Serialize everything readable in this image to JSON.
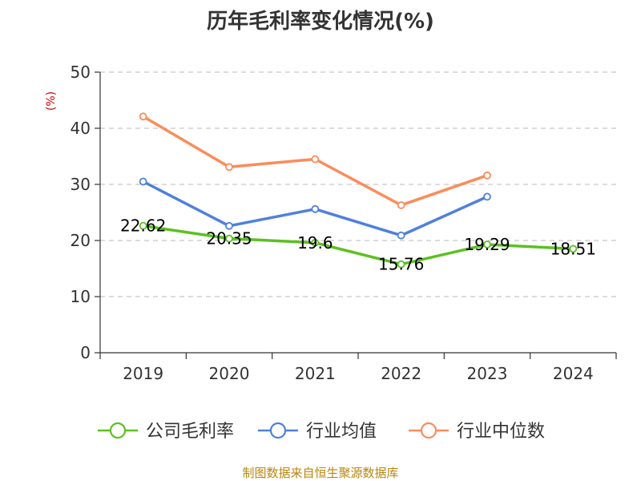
{
  "chart_data": {
    "type": "line",
    "title": "历年毛利率变化情况(%)",
    "ylabel": "(%)",
    "xlabel": "",
    "categories": [
      "2019",
      "2020",
      "2021",
      "2022",
      "2023",
      "2024"
    ],
    "yticks": [
      "0",
      "10",
      "20",
      "30",
      "40",
      "50"
    ],
    "ylim": [
      0,
      50
    ],
    "grid": true,
    "legend_position": "bottom",
    "series": [
      {
        "name": "公司毛利率",
        "color": "#5cc020",
        "values": [
          22.62,
          20.35,
          19.6,
          15.76,
          19.29,
          18.51
        ],
        "labels": [
          "22.62",
          "20.35",
          "19.6",
          "15.76",
          "19.29",
          "18.51"
        ]
      },
      {
        "name": "行业均值",
        "color": "#4f80dc",
        "values": [
          30.5,
          22.6,
          25.6,
          20.9,
          27.8,
          null
        ]
      },
      {
        "name": "行业中位数",
        "color": "#fb8c5a",
        "values": [
          42.1,
          33.1,
          34.5,
          26.3,
          31.6,
          null
        ]
      }
    ]
  },
  "footer": {
    "source": "制图数据来自恒生聚源数据库"
  }
}
